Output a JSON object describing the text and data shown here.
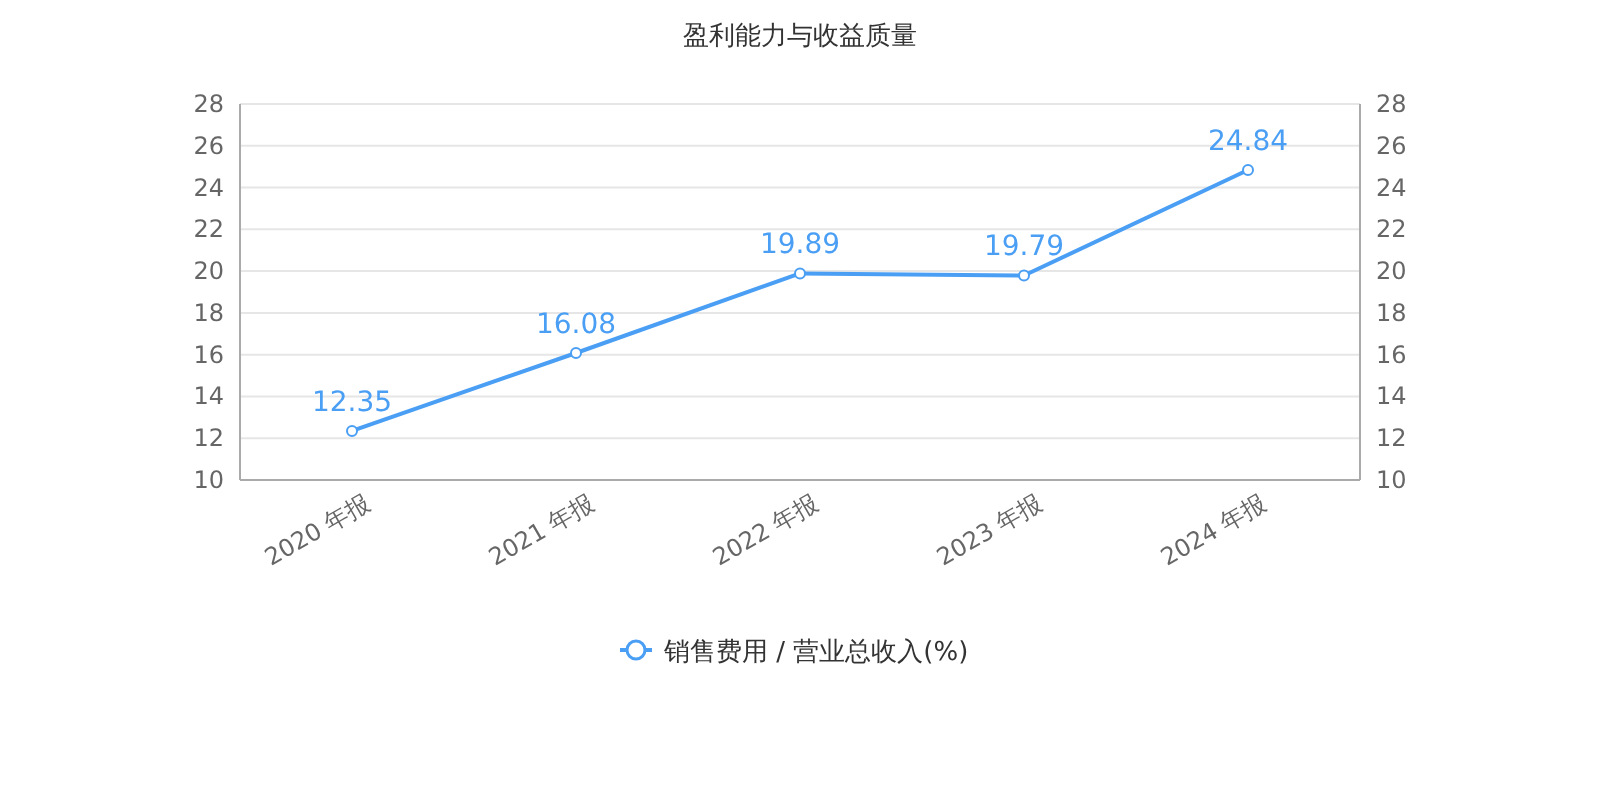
{
  "chart_data": {
    "type": "line",
    "title": "盈利能力与收益质量",
    "categories": [
      "2020 年报",
      "2021 年报",
      "2022 年报",
      "2023 年报",
      "2024 年报"
    ],
    "series": [
      {
        "name": "销售费用 / 营业总收入(%)",
        "color": "#4a9ff5",
        "values": [
          12.35,
          16.08,
          19.89,
          19.79,
          24.84
        ]
      }
    ],
    "ylim": [
      10,
      28
    ],
    "yticks": [
      10,
      12,
      14,
      16,
      18,
      20,
      22,
      24,
      26,
      28
    ],
    "y2lim": [
      10,
      28
    ],
    "y2ticks": [
      10,
      12,
      14,
      16,
      18,
      20,
      22,
      24,
      26,
      28
    ],
    "grid": "y",
    "legend": "bottom",
    "marker": "circle",
    "line_style": "solid",
    "data_labels": true
  }
}
